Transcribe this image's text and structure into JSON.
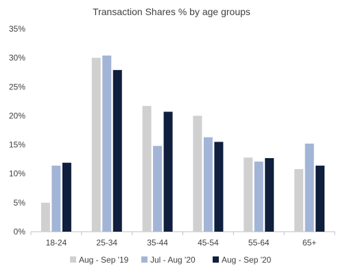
{
  "chart_data": {
    "type": "bar",
    "title": "Transaction Shares % by age groups",
    "xlabel": "",
    "ylabel": "",
    "categories": [
      "18-24",
      "25-34",
      "35-44",
      "45-54",
      "55-64",
      "65+"
    ],
    "series": [
      {
        "name": "Aug - Sep '19",
        "color": "#d0d0d0",
        "values": [
          5.0,
          30.0,
          21.7,
          20.0,
          12.8,
          10.8
        ]
      },
      {
        "name": "Jul - Aug '20",
        "color": "#a3b5d6",
        "values": [
          11.4,
          30.4,
          14.8,
          16.3,
          12.1,
          15.2
        ]
      },
      {
        "name": "Aug - Sep '20",
        "color": "#0f1f3d",
        "values": [
          11.9,
          27.9,
          20.7,
          15.5,
          12.7,
          11.4
        ]
      }
    ],
    "ylim": [
      0,
      35
    ],
    "yticks": [
      0,
      5,
      10,
      15,
      20,
      25,
      30,
      35
    ],
    "ytick_labels": [
      "0%",
      "5%",
      "10%",
      "15%",
      "20%",
      "25%",
      "30%",
      "35%"
    ],
    "grid": false,
    "legend_position": "bottom",
    "axis_color": "#bfbfbf",
    "text_color": "#404040"
  }
}
